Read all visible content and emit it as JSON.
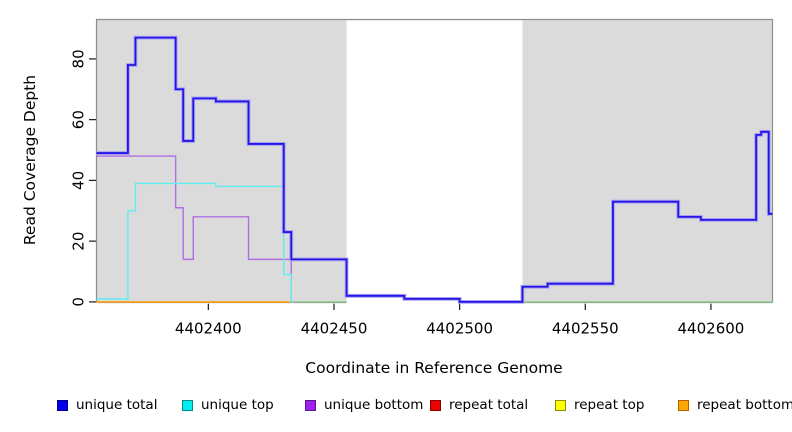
{
  "chart_data": {
    "type": "line",
    "subtype": "step-function-coverage-plot",
    "title": "",
    "xlabel": "Coordinate in Reference Genome",
    "ylabel": "Read Coverage Depth",
    "x_ticks": [
      4402400,
      4402450,
      4402500,
      4402550,
      4402600
    ],
    "y_ticks": [
      0,
      20,
      40,
      60,
      80
    ],
    "xlim": [
      4402355.5,
      4402624.5
    ],
    "ylim": [
      0,
      93
    ],
    "grid": "off",
    "legend_position": "bottom",
    "plot_bg": "#dbdbdb",
    "outer_bg": "#ffffff",
    "border_color": "#8e8e8e",
    "highlight_band": {
      "x0": 4402455,
      "x1": 4402525,
      "color": "#ffffff"
    },
    "series": [
      {
        "name": "repeat bottom",
        "color": "#ffa116",
        "width": 1.6,
        "steps": [
          [
            4402355.5,
            0
          ]
        ],
        "end": 4402434
      },
      {
        "name": "zero overlap left",
        "color": "#8ccf8c",
        "width": 1.2,
        "steps": [
          [
            4402434,
            0
          ]
        ],
        "end": 4402455
      },
      {
        "name": "zero overlap right",
        "color": "#8ccf8c",
        "width": 1.2,
        "steps": [
          [
            4402525,
            0
          ]
        ],
        "end": 4402624.5
      },
      {
        "name": "unique bottom",
        "color": "#b06fe3",
        "width": 1.4,
        "steps": [
          [
            4402355.5,
            48
          ],
          [
            4402387,
            31
          ],
          [
            4402390,
            14
          ],
          [
            4402394,
            28
          ],
          [
            4402416,
            14
          ],
          [
            4402433,
            0
          ]
        ],
        "end": 4402434
      },
      {
        "name": "unique top",
        "color": "#63edf2",
        "width": 1.4,
        "steps": [
          [
            4402355.5,
            1
          ],
          [
            4402368,
            30
          ],
          [
            4402371,
            39
          ],
          [
            4402403,
            38
          ],
          [
            4402430,
            9
          ],
          [
            4402433,
            0
          ]
        ],
        "end": 4402434
      },
      {
        "name": "unique total",
        "color": "#2415e5",
        "halo": "#a9a2f2",
        "width": 1.8,
        "steps": [
          [
            4402355.5,
            49
          ],
          [
            4402368,
            78
          ],
          [
            4402371,
            87
          ],
          [
            4402387,
            70
          ],
          [
            4402390,
            53
          ],
          [
            4402394,
            67
          ],
          [
            4402403,
            66
          ],
          [
            4402416,
            52
          ],
          [
            4402430,
            23
          ],
          [
            4402433,
            14
          ],
          [
            4402455,
            2
          ],
          [
            4402478,
            1
          ],
          [
            4402500,
            0
          ],
          [
            4402525,
            5
          ],
          [
            4402535,
            6
          ],
          [
            4402561,
            33
          ],
          [
            4402587,
            28
          ],
          [
            4402596,
            27
          ],
          [
            4402618,
            55
          ],
          [
            4402620,
            56
          ],
          [
            4402623,
            29
          ]
        ],
        "end": 4402624.5
      }
    ],
    "legend": [
      {
        "label": "unique total",
        "fill": "#0000ee",
        "border": "#00008b"
      },
      {
        "label": "unique top",
        "fill": "#00eeee",
        "border": "#008b8b"
      },
      {
        "label": "unique bottom",
        "fill": "#a020f0",
        "border": "#551a8b"
      },
      {
        "label": "repeat total",
        "fill": "#ee0000",
        "border": "#8b0000"
      },
      {
        "label": "repeat top",
        "fill": "#ffff00",
        "border": "#8b8b00"
      },
      {
        "label": "repeat bottom",
        "fill": "#ffa500",
        "border": "#b36200"
      }
    ]
  }
}
